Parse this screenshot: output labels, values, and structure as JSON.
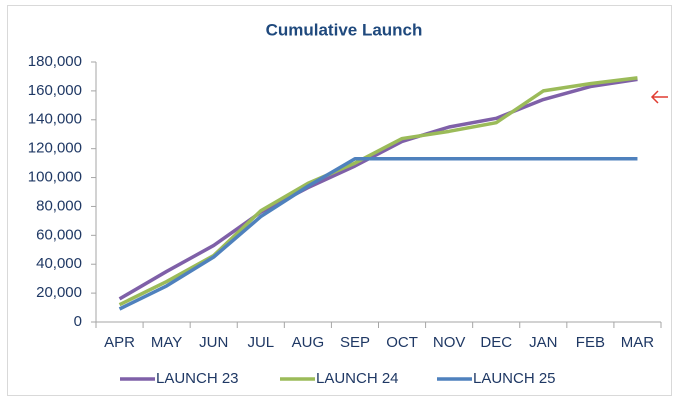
{
  "chart_data": {
    "type": "line",
    "title": "Cumulative Launch",
    "categories": [
      "APR",
      "MAY",
      "JUN",
      "JUL",
      "AUG",
      "SEP",
      "OCT",
      "NOV",
      "DEC",
      "JAN",
      "FEB",
      "MAR"
    ],
    "series": [
      {
        "name": "LAUNCH 23",
        "color": "#7f60a8",
        "values": [
          16000,
          35000,
          53000,
          76000,
          93000,
          108000,
          125000,
          135000,
          141000,
          154000,
          163000,
          168000
        ]
      },
      {
        "name": "LAUNCH 24",
        "color": "#9bbb59",
        "values": [
          12000,
          28000,
          46000,
          77000,
          96000,
          110000,
          127000,
          132000,
          138000,
          160000,
          165000,
          169000
        ]
      },
      {
        "name": "LAUNCH 25",
        "color": "#4f81bd",
        "values": [
          9000,
          25000,
          45000,
          73000,
          94000,
          113000,
          113000,
          113000,
          113000,
          113000,
          113000,
          113000
        ]
      }
    ],
    "ylim": [
      0,
      180000
    ],
    "yticks": [
      0,
      {
        "value": 20000,
        "label": "20,000"
      },
      {
        "value": 40000,
        "label": "40,000"
      },
      {
        "value": 60000,
        "label": "60,000"
      },
      {
        "value": 80000,
        "label": "80,000"
      },
      {
        "value": 100000,
        "label": "100,000"
      },
      {
        "value": 120000,
        "label": "120,000"
      },
      {
        "value": 140000,
        "label": "140,000"
      },
      {
        "value": 160000,
        "label": "160,000"
      },
      {
        "value": 180000,
        "label": "180,000"
      }
    ],
    "grid": false,
    "legend": "bottom"
  }
}
